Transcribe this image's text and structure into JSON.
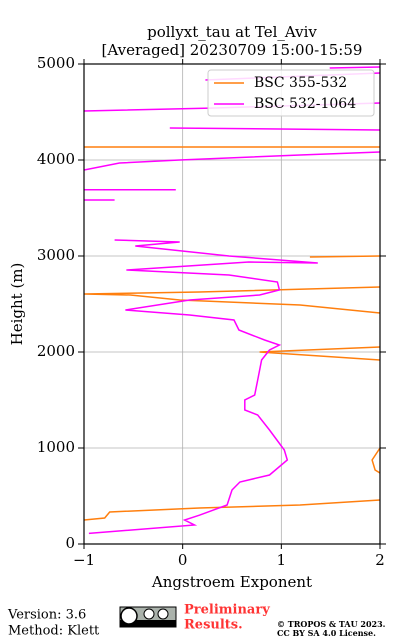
{
  "chart_data": {
    "type": "line",
    "title": "pollyxt_tau at Tel_Aviv",
    "subtitle": "[Averaged] 20230709 15:00-15:59",
    "x_label": "Angstroem Exponent",
    "y_label": "Height (m)",
    "xlim": [
      -1,
      2
    ],
    "ylim": [
      0,
      5000
    ],
    "xticks": [
      {
        "value": -1,
        "label": "−1"
      },
      0,
      1,
      2
    ],
    "yticks": [
      0,
      1000,
      2000,
      3000,
      4000,
      5000
    ],
    "grid": true,
    "legend": "upper right",
    "series": [
      {
        "name": "BSC 355-532",
        "color": "#ff7f0e",
        "y": [
          250,
          271,
          333,
          375,
          406,
          458,
          null,
          1000,
          875,
          771,
          740,
          null,
          1917,
          2000,
          2052,
          null,
          2406,
          2490,
          2542,
          2594,
          2604,
          2625,
          2677,
          null,
          2990,
          3000,
          null,
          4135,
          4135
        ],
        "values": [
          -1,
          -0.79,
          -0.74,
          0.17,
          1.19,
          2,
          null,
          2,
          1.92,
          1.95,
          2,
          null,
          2,
          0.78,
          2,
          null,
          2,
          1.19,
          -0.03,
          -0.53,
          -1,
          0.17,
          2,
          null,
          1.29,
          2,
          null,
          -1,
          2
        ]
      },
      {
        "name": "BSC 532-1064",
        "color": "#ff00ff",
        "y": [
          110,
          198,
          250,
          300,
          406,
          563,
          646,
          719,
          875,
          979,
          1188,
          1344,
          1396,
          1500,
          1552,
          1708,
          1917,
          2021,
          2073,
          2125,
          2229,
          2333,
          2385,
          2438,
          2542,
          2594,
          2646,
          2729,
          2802,
          2854,
          2938,
          2927,
          3000,
          3104,
          3146,
          3167,
          null,
          3583,
          3583,
          null,
          3690,
          3690,
          null,
          3896,
          3969,
          4000,
          4052,
          4083,
          null,
          4333,
          4313,
          null,
          4510,
          4542,
          4594,
          null,
          4833,
          4906,
          null,
          4958,
          4969
        ],
        "values": [
          -0.95,
          0.12,
          0.02,
          0.17,
          0.45,
          0.5,
          0.58,
          0.88,
          1.06,
          1.03,
          0.88,
          0.76,
          0.63,
          0.63,
          0.73,
          0.76,
          0.8,
          0.88,
          0.98,
          0.83,
          0.57,
          0.52,
          0.07,
          -0.58,
          0.07,
          0.78,
          0.98,
          0.96,
          0.47,
          -0.57,
          0.67,
          1.37,
          0.47,
          -0.48,
          -0.03,
          -0.69,
          null,
          -1,
          -0.69,
          null,
          -1,
          -0.07,
          null,
          -1,
          -0.64,
          -0.03,
          1.19,
          2,
          null,
          -0.13,
          2,
          null,
          -1,
          0.33,
          2,
          null,
          0.23,
          2,
          null,
          1.49,
          2
        ]
      }
    ]
  },
  "footer": {
    "version": "Version: 3.6",
    "method": "Method: Klett",
    "preliminary": "Preliminary",
    "results": "Results.",
    "copyright": "© TROPOS & TAU 2023.",
    "license": "CC BY SA 4.0 License."
  }
}
